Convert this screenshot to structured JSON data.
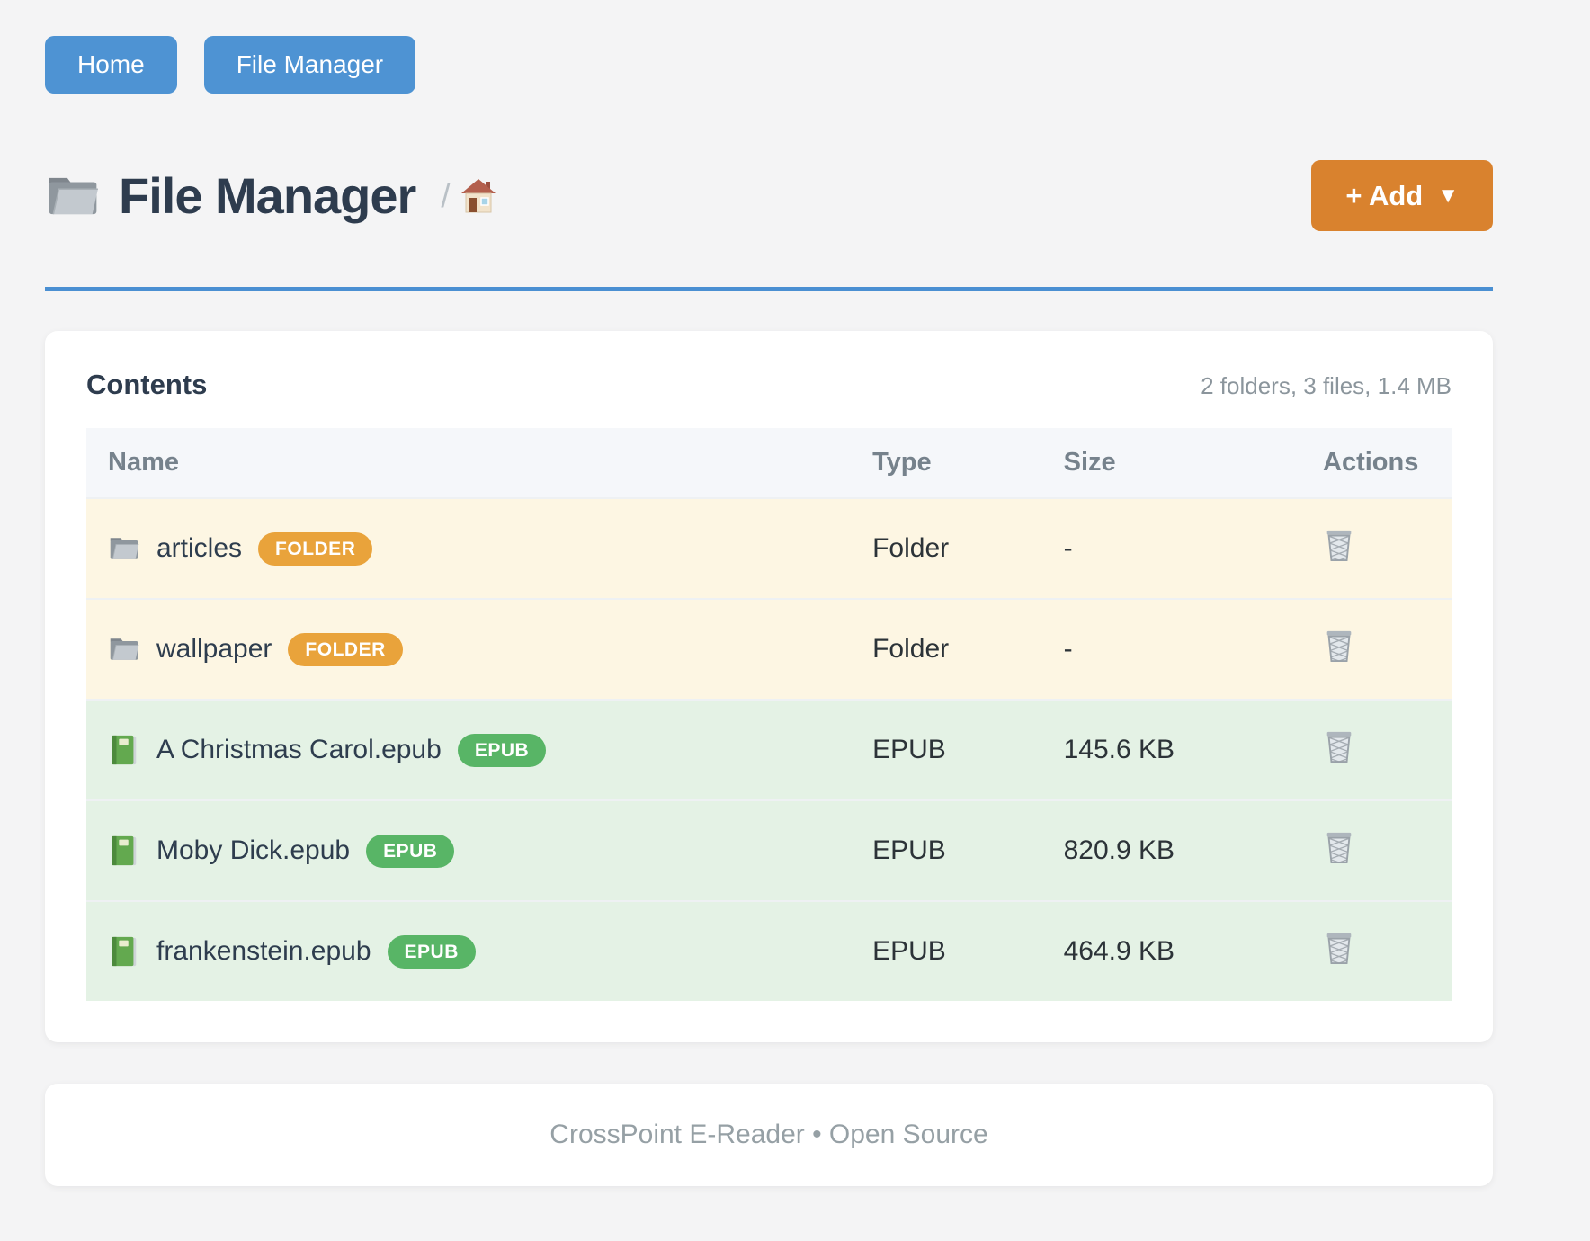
{
  "nav": {
    "items": [
      {
        "label": "Home"
      },
      {
        "label": "File Manager"
      }
    ]
  },
  "header": {
    "icon": "folder-icon",
    "title": "File Manager",
    "breadcrumb_separator": "/",
    "breadcrumb_home": "home-icon",
    "add_button": {
      "label": "+ Add",
      "caret": "▼"
    }
  },
  "contents": {
    "title": "Contents",
    "summary": "2 folders, 3 files, 1.4 MB",
    "table": {
      "columns": [
        "Name",
        "Type",
        "Size",
        "Actions"
      ],
      "action_icon": "trash-icon",
      "rows": [
        {
          "icon": "folder-icon",
          "name": "articles",
          "badge": "FOLDER",
          "kind": "folder",
          "type": "Folder",
          "size": "-"
        },
        {
          "icon": "folder-icon",
          "name": "wallpaper",
          "badge": "FOLDER",
          "kind": "folder",
          "type": "Folder",
          "size": "-"
        },
        {
          "icon": "book-icon",
          "name": "A Christmas Carol.epub",
          "badge": "EPUB",
          "kind": "epub",
          "type": "EPUB",
          "size": "145.6 KB"
        },
        {
          "icon": "book-icon",
          "name": "Moby Dick.epub",
          "badge": "EPUB",
          "kind": "epub",
          "type": "EPUB",
          "size": "820.9 KB"
        },
        {
          "icon": "book-icon",
          "name": "frankenstein.epub",
          "badge": "EPUB",
          "kind": "epub",
          "type": "EPUB",
          "size": "464.9 KB"
        }
      ]
    }
  },
  "footer": {
    "text": "CrossPoint E-Reader • Open Source"
  },
  "colors": {
    "nav_blue": "#4e93d3",
    "accent_rule_blue": "#4a8fd2",
    "add_orange": "#d9822e",
    "folder_badge": "#e9a33b",
    "epub_badge": "#58b566",
    "folder_row_bg": "#fdf6e3",
    "epub_row_bg": "#e4f2e5"
  }
}
